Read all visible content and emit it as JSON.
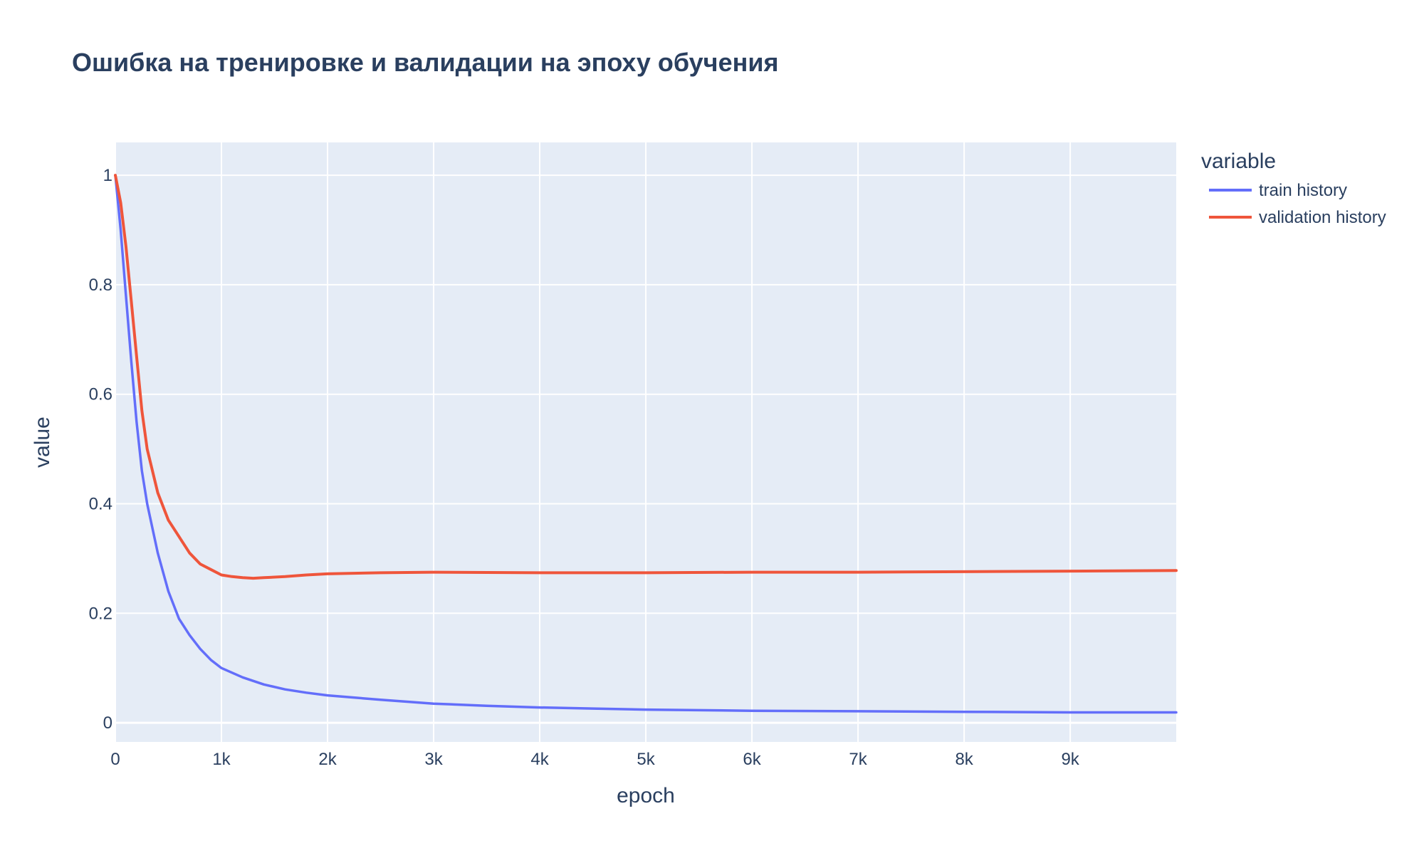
{
  "chart_data": {
    "type": "line",
    "title": "Ошибка на тренировке и валидации на эпоху обучения",
    "xlabel": "epoch",
    "ylabel": "value",
    "xlim": [
      0,
      9999
    ],
    "ylim": [
      -0.035,
      1.06
    ],
    "x_ticks": [
      {
        "value": 0,
        "label": "0"
      },
      {
        "value": 1000,
        "label": "1k"
      },
      {
        "value": 2000,
        "label": "2k"
      },
      {
        "value": 3000,
        "label": "3k"
      },
      {
        "value": 4000,
        "label": "4k"
      },
      {
        "value": 5000,
        "label": "5k"
      },
      {
        "value": 6000,
        "label": "6k"
      },
      {
        "value": 7000,
        "label": "7k"
      },
      {
        "value": 8000,
        "label": "8k"
      },
      {
        "value": 9000,
        "label": "9k"
      }
    ],
    "y_ticks": [
      {
        "value": 0,
        "label": "0"
      },
      {
        "value": 0.2,
        "label": "0.2"
      },
      {
        "value": 0.4,
        "label": "0.4"
      },
      {
        "value": 0.6,
        "label": "0.6"
      },
      {
        "value": 0.8,
        "label": "0.8"
      },
      {
        "value": 1,
        "label": "1"
      }
    ],
    "grid": true,
    "legend": {
      "title": "variable",
      "placement": "right"
    },
    "plot_bgcolor": "#e5ecf6",
    "grid_color": "#ffffff",
    "series": [
      {
        "name": "train history",
        "color": "#636efa",
        "x": [
          0,
          50,
          100,
          150,
          200,
          250,
          300,
          400,
          500,
          600,
          700,
          800,
          900,
          1000,
          1200,
          1400,
          1600,
          1800,
          2000,
          2500,
          3000,
          3500,
          4000,
          4500,
          5000,
          6000,
          7000,
          8000,
          9000,
          9999
        ],
        "y": [
          1.0,
          0.9,
          0.78,
          0.66,
          0.55,
          0.46,
          0.4,
          0.31,
          0.24,
          0.19,
          0.16,
          0.135,
          0.115,
          0.1,
          0.083,
          0.07,
          0.061,
          0.055,
          0.05,
          0.042,
          0.035,
          0.031,
          0.028,
          0.026,
          0.024,
          0.022,
          0.021,
          0.02,
          0.019,
          0.019
        ]
      },
      {
        "name": "validation history",
        "color": "#ef553b",
        "x": [
          0,
          50,
          100,
          150,
          200,
          250,
          300,
          400,
          500,
          600,
          700,
          800,
          900,
          1000,
          1100,
          1200,
          1300,
          1400,
          1600,
          1800,
          2000,
          2500,
          3000,
          4000,
          5000,
          6000,
          7000,
          8000,
          9000,
          9999
        ],
        "y": [
          1.0,
          0.95,
          0.87,
          0.77,
          0.67,
          0.57,
          0.5,
          0.42,
          0.37,
          0.34,
          0.31,
          0.29,
          0.28,
          0.27,
          0.267,
          0.265,
          0.264,
          0.265,
          0.267,
          0.27,
          0.272,
          0.274,
          0.275,
          0.274,
          0.274,
          0.275,
          0.275,
          0.276,
          0.277,
          0.278
        ]
      }
    ]
  }
}
